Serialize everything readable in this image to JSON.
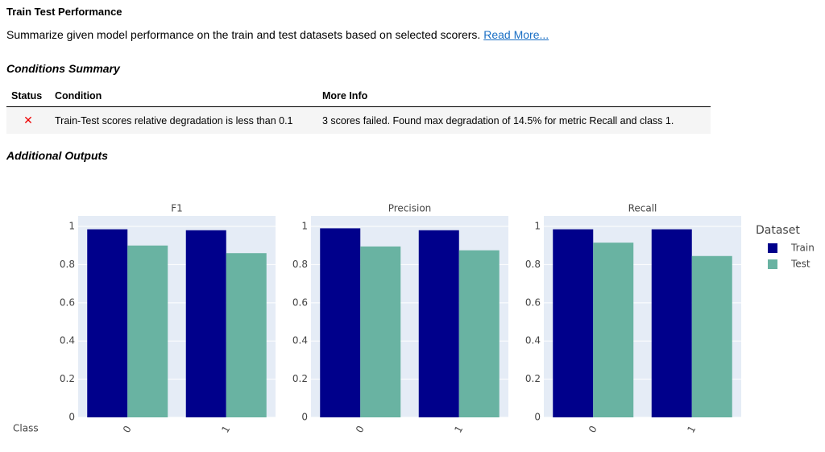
{
  "header": {
    "title": "Train Test Performance",
    "description": "Summarize given model performance on the train and test datasets based on selected scorers.",
    "link_text": "Read More..."
  },
  "conditions": {
    "title": "Conditions Summary",
    "headers": [
      "Status",
      "Condition",
      "More Info"
    ],
    "rows": [
      [
        "✕",
        "Train-Test scores relative degradation is less than 0.1",
        "3 scores failed. Found max degradation of 14.5% for metric Recall and class 1."
      ]
    ]
  },
  "additional_outputs_title": "Additional Outputs",
  "chart_data": [
    {
      "type": "bar",
      "title": "F1",
      "xlabel": "Class",
      "legend_title": "Dataset",
      "categories": [
        "0",
        "1"
      ],
      "series": [
        {
          "name": "Train",
          "color": "#00008b",
          "values": [
            0.985,
            0.98
          ]
        },
        {
          "name": "Test",
          "color": "#69b3a2",
          "values": [
            0.9,
            0.86
          ]
        }
      ],
      "ylim": [
        0,
        1.055
      ],
      "yticks": [
        0,
        0.2,
        0.4,
        0.6,
        0.8,
        1
      ],
      "grid": true
    },
    {
      "type": "bar",
      "title": "Precision",
      "categories": [
        "0",
        "1"
      ],
      "series": [
        {
          "name": "Train",
          "color": "#00008b",
          "values": [
            0.99,
            0.98
          ]
        },
        {
          "name": "Test",
          "color": "#69b3a2",
          "values": [
            0.895,
            0.875
          ]
        }
      ],
      "ylim": [
        0,
        1.055
      ],
      "yticks": [
        0,
        0.2,
        0.4,
        0.6,
        0.8,
        1
      ],
      "grid": true
    },
    {
      "type": "bar",
      "title": "Recall",
      "categories": [
        "0",
        "1"
      ],
      "series": [
        {
          "name": "Train",
          "color": "#00008b",
          "values": [
            0.985,
            0.985
          ]
        },
        {
          "name": "Test",
          "color": "#69b3a2",
          "values": [
            0.915,
            0.845
          ]
        }
      ],
      "ylim": [
        0,
        1.055
      ],
      "yticks": [
        0,
        0.2,
        0.4,
        0.6,
        0.8,
        1
      ],
      "grid": true
    }
  ]
}
